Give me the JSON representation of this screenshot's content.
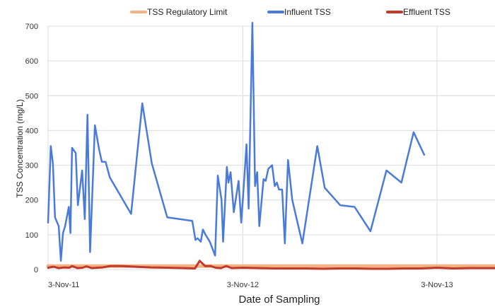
{
  "chart_data": {
    "type": "line",
    "xlabel": "Date of Sampling",
    "ylabel": "TSS Concentration (mg/L)",
    "ylim": [
      0,
      700
    ],
    "yticks": [
      0,
      100,
      200,
      300,
      400,
      500,
      600,
      700
    ],
    "xrange": [
      "2011-11-03",
      "2014-02-20"
    ],
    "xticks": [
      {
        "date": "2011-11-03",
        "label": "3-Nov-11"
      },
      {
        "date": "2012-11-03",
        "label": "3-Nov-12"
      },
      {
        "date": "2013-11-03",
        "label": "3-Nov-13"
      }
    ],
    "grid": true,
    "legend_position": "top",
    "series": [
      {
        "name": "TSS Regulatory Limit",
        "color": "#f4b183",
        "width": 5,
        "points": [
          [
            "2011-11-03",
            10
          ],
          [
            "2014-02-20",
            10
          ]
        ]
      },
      {
        "name": "Influent TSS",
        "color": "#4a7bd8",
        "width": 2.5,
        "points": [
          [
            "2011-11-03",
            135
          ],
          [
            "2011-11-08",
            355
          ],
          [
            "2011-11-12",
            305
          ],
          [
            "2011-11-16",
            150
          ],
          [
            "2011-11-23",
            125
          ],
          [
            "2011-11-27",
            25
          ],
          [
            "2011-12-01",
            105
          ],
          [
            "2011-12-05",
            125
          ],
          [
            "2011-12-12",
            180
          ],
          [
            "2011-12-15",
            105
          ],
          [
            "2011-12-18",
            350
          ],
          [
            "2011-12-25",
            335
          ],
          [
            "2011-12-29",
            185
          ],
          [
            "2012-01-06",
            285
          ],
          [
            "2012-01-11",
            145
          ],
          [
            "2012-01-16",
            445
          ],
          [
            "2012-01-21",
            50
          ],
          [
            "2012-01-30",
            415
          ],
          [
            "2012-02-07",
            345
          ],
          [
            "2012-02-12",
            310
          ],
          [
            "2012-02-19",
            310
          ],
          [
            "2012-02-27",
            265
          ],
          [
            "2012-04-07",
            160
          ],
          [
            "2012-04-28",
            478
          ],
          [
            "2012-05-16",
            305
          ],
          [
            "2012-06-14",
            150
          ],
          [
            "2012-07-31",
            140
          ],
          [
            "2012-08-06",
            85
          ],
          [
            "2012-08-10",
            90
          ],
          [
            "2012-08-16",
            80
          ],
          [
            "2012-08-20",
            115
          ],
          [
            "2012-08-25",
            100
          ],
          [
            "2012-09-02",
            80
          ],
          [
            "2012-09-12",
            40
          ],
          [
            "2012-09-17",
            270
          ],
          [
            "2012-09-24",
            200
          ],
          [
            "2012-09-27",
            80
          ],
          [
            "2012-10-04",
            295
          ],
          [
            "2012-10-07",
            250
          ],
          [
            "2012-10-11",
            280
          ],
          [
            "2012-10-17",
            165
          ],
          [
            "2012-10-26",
            255
          ],
          [
            "2012-10-31",
            135
          ],
          [
            "2012-11-03",
            200
          ],
          [
            "2012-11-10",
            360
          ],
          [
            "2012-11-14",
            175
          ],
          [
            "2012-11-21",
            710
          ],
          [
            "2012-11-26",
            240
          ],
          [
            "2012-11-30",
            280
          ],
          [
            "2012-12-04",
            125
          ],
          [
            "2012-12-12",
            260
          ],
          [
            "2012-12-16",
            255
          ],
          [
            "2012-12-21",
            290
          ],
          [
            "2012-12-28",
            300
          ],
          [
            "2013-01-02",
            240
          ],
          [
            "2013-01-06",
            250
          ],
          [
            "2013-01-10",
            230
          ],
          [
            "2013-01-16",
            230
          ],
          [
            "2013-01-21",
            75
          ],
          [
            "2013-01-27",
            315
          ],
          [
            "2013-02-04",
            200
          ],
          [
            "2013-02-23",
            75
          ],
          [
            "2013-03-23",
            355
          ],
          [
            "2013-04-06",
            235
          ],
          [
            "2013-05-05",
            185
          ],
          [
            "2013-06-01",
            180
          ],
          [
            "2013-07-01",
            110
          ],
          [
            "2013-07-31",
            285
          ],
          [
            "2013-08-28",
            250
          ],
          [
            "2013-09-20",
            395
          ],
          [
            "2013-10-10",
            330
          ]
        ]
      },
      {
        "name": "Effluent TSS",
        "color": "#c0392b",
        "width": 3,
        "points": [
          [
            "2011-11-03",
            5
          ],
          [
            "2011-11-13",
            8
          ],
          [
            "2011-11-23",
            4
          ],
          [
            "2011-12-03",
            6
          ],
          [
            "2011-12-13",
            5
          ],
          [
            "2011-12-18",
            10
          ],
          [
            "2011-12-28",
            4
          ],
          [
            "2012-01-07",
            5
          ],
          [
            "2012-01-14",
            9
          ],
          [
            "2012-01-24",
            4
          ],
          [
            "2012-02-03",
            5
          ],
          [
            "2012-02-13",
            6
          ],
          [
            "2012-02-28",
            10
          ],
          [
            "2012-03-20",
            10
          ],
          [
            "2012-04-15",
            8
          ],
          [
            "2012-05-15",
            6
          ],
          [
            "2012-06-15",
            5
          ],
          [
            "2012-07-15",
            4
          ],
          [
            "2012-08-05",
            3
          ],
          [
            "2012-08-14",
            25
          ],
          [
            "2012-08-24",
            10
          ],
          [
            "2012-09-03",
            10
          ],
          [
            "2012-09-13",
            5
          ],
          [
            "2012-09-23",
            4
          ],
          [
            "2012-10-03",
            10
          ],
          [
            "2012-10-13",
            4
          ],
          [
            "2012-11-03",
            5
          ],
          [
            "2012-12-03",
            4
          ],
          [
            "2013-01-03",
            3
          ],
          [
            "2013-02-03",
            3
          ],
          [
            "2013-03-03",
            3
          ],
          [
            "2013-04-03",
            2
          ],
          [
            "2013-05-03",
            3
          ],
          [
            "2013-06-03",
            3
          ],
          [
            "2013-07-03",
            2
          ],
          [
            "2013-08-03",
            2
          ],
          [
            "2013-09-03",
            3
          ],
          [
            "2013-10-03",
            3
          ],
          [
            "2013-11-03",
            5
          ],
          [
            "2013-12-03",
            3
          ],
          [
            "2014-01-03",
            4
          ],
          [
            "2014-02-20",
            4
          ]
        ]
      }
    ]
  }
}
